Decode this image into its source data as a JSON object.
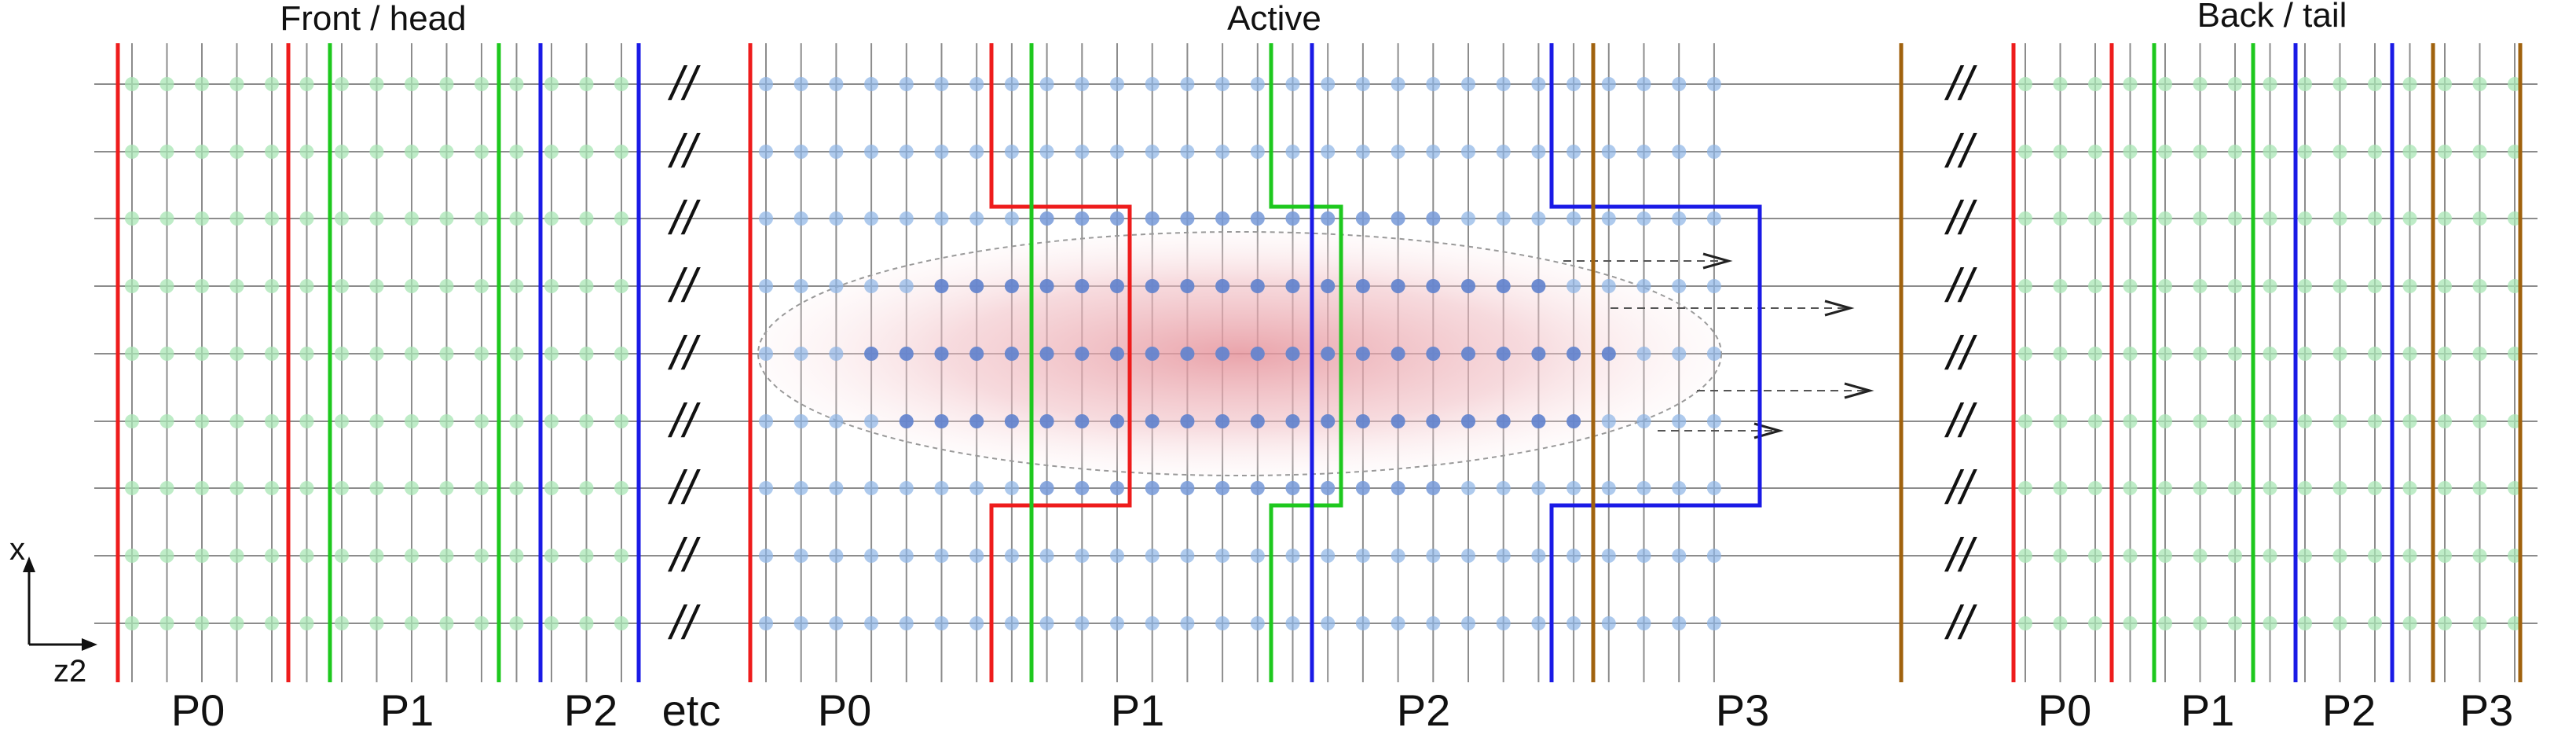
{
  "sections": {
    "front": "Front / head",
    "active": "Active",
    "back": "Back / tail"
  },
  "parts": {
    "front": [
      "P0",
      "P1",
      "P2"
    ],
    "front_etc": "etc",
    "active": [
      "P0",
      "P1",
      "P2",
      "P3"
    ],
    "back": [
      "P0",
      "P1",
      "P2",
      "P3"
    ]
  },
  "axes": {
    "vertical": "x",
    "horizontal": "z2"
  },
  "break_mark": "//",
  "colors": {
    "P0": "#ee1c1c",
    "P1": "#1ec81e",
    "P2": "#1a1ae6",
    "P3": "#a0620e",
    "grid": "#8c8c8c",
    "dot_front_back": "#a8e6b4",
    "dot_active": "#8cb4e6",
    "blob_center": "#e8a0a8"
  }
}
